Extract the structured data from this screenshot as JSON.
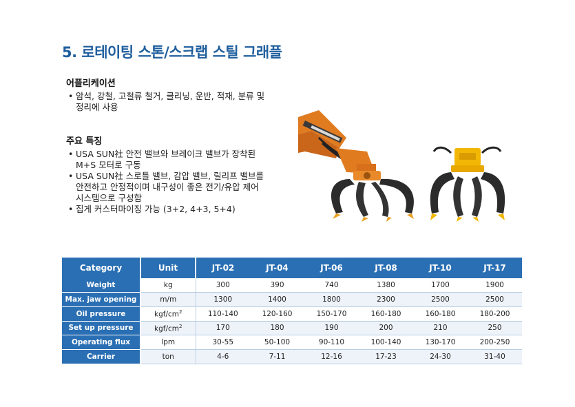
{
  "title": "5. 로테이팅 스톤/스크랩 스틸 그래플",
  "application": {
    "heading": "어플리케이션",
    "items": [
      "암석, 강철, 고철류 철거, 클리닝, 운반, 적재, 분류 및",
      "정리에 사용"
    ]
  },
  "features": {
    "heading": "주요 특징",
    "items": [
      {
        "line1": "USA SUN社 안전 밸브와 브레이크 밸브가 장착된",
        "line2": "M+S 모터로 구동"
      },
      {
        "line1": "USA SUN社 스로틀 밸브, 감압 밸브, 릴리프 밸브를",
        "line2": "안전하고 안정적이며 내구성이 좋은 전기/유압 제어",
        "line3": "시스템으로 구성함"
      },
      {
        "line1": "집게 커스터마이징 가능 (3+2, 4+3, 5+4)"
      }
    ]
  },
  "bullet_char": "•",
  "table": {
    "headers": [
      "Category",
      "Unit",
      "JT-02",
      "JT-04",
      "JT-06",
      "JT-08",
      "JT-10",
      "JT-17"
    ],
    "rows": [
      {
        "category": "Weight",
        "unit": "kg",
        "values": [
          "300",
          "390",
          "740",
          "1380",
          "1700",
          "1900"
        ]
      },
      {
        "category": "Max. jaw opening",
        "unit": "m/m",
        "values": [
          "1300",
          "1400",
          "1800",
          "2300",
          "2500",
          "2500"
        ]
      },
      {
        "category": "Oil pressure",
        "unit": "kgf/cm",
        "unit_sup": "2",
        "values": [
          "110-140",
          "120-160",
          "150-170",
          "160-180",
          "160-180",
          "180-200"
        ]
      },
      {
        "category": "Set up pressure",
        "unit": "kgf/cm",
        "unit_sup": "2",
        "values": [
          "170",
          "180",
          "190",
          "200",
          "210",
          "250"
        ]
      },
      {
        "category": "Operating flux",
        "unit": "lpm",
        "values": [
          "30-55",
          "50-100",
          "90-110",
          "100-140",
          "130-170",
          "200-250"
        ]
      },
      {
        "category": "Carrier",
        "unit": "ton",
        "values": [
          "4-6",
          "7-11",
          "12-16",
          "17-23",
          "24-30",
          "31-40"
        ]
      }
    ]
  },
  "colors": {
    "title": "#1f5f9e",
    "header_bg": "#2a6fb3",
    "machine_orange": "#e07b20",
    "grapple_yellow": "#f2b705",
    "jaw_dark": "#2b2b2b"
  }
}
